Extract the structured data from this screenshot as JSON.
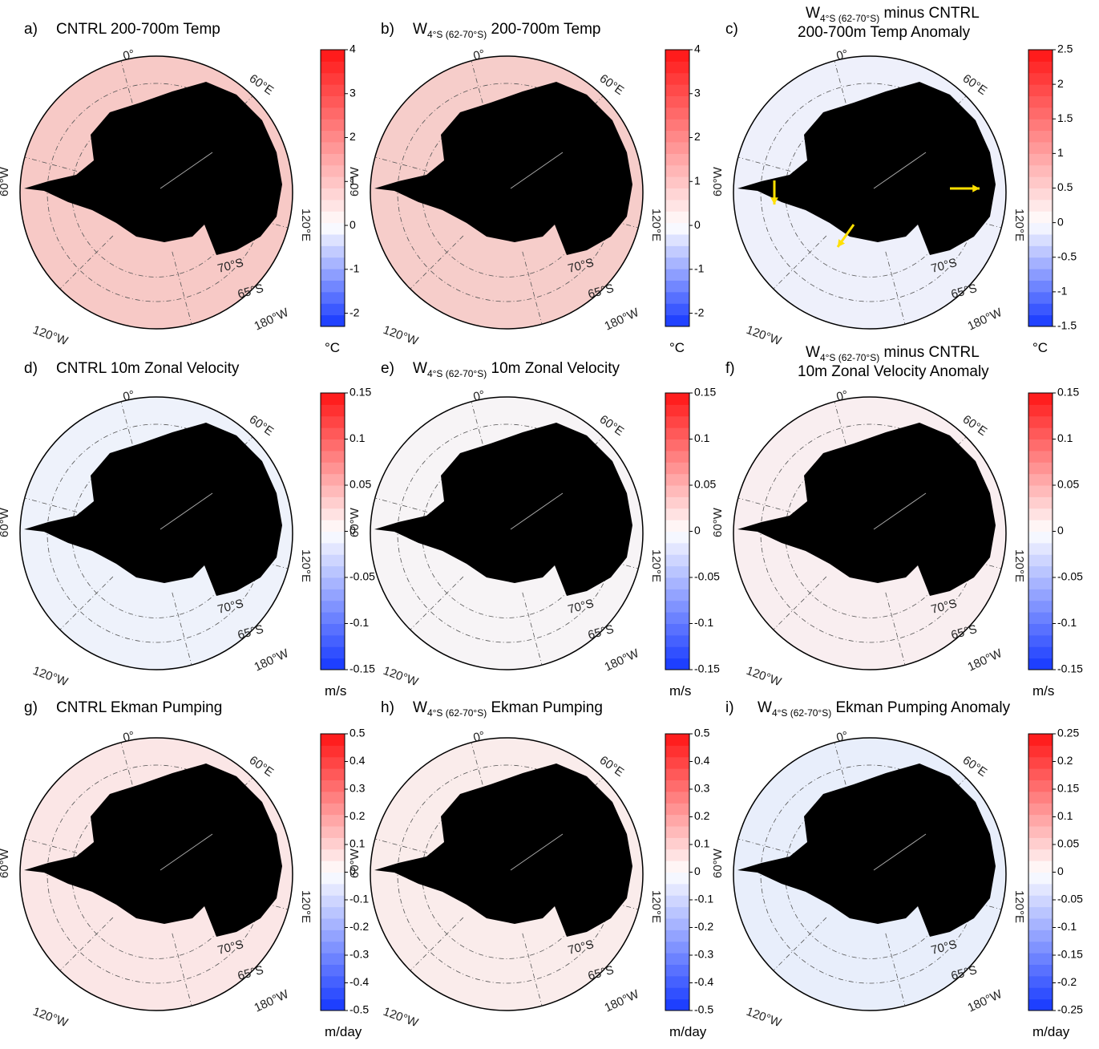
{
  "panels": [
    {
      "label": "a)",
      "title": "CNTRL 200-700m Temp",
      "clim": [
        -2.3,
        4
      ],
      "ticks": [
        -2,
        -1,
        0,
        1,
        2,
        3,
        4
      ],
      "unit": "°C"
    },
    {
      "label": "b)",
      "title_w": {
        "pre": "W",
        "sub": "4°S (62-70°S)",
        "post": " 200-700m  Temp"
      },
      "clim": [
        -2.3,
        4
      ],
      "ticks": [
        -2,
        -1,
        0,
        1,
        2,
        3,
        4
      ],
      "unit": "°C"
    },
    {
      "label": "c)",
      "title_w": {
        "pre": "W",
        "sub": "4°S (62-70°S)",
        "post": " minus CNTRL"
      },
      "title2": "200-700m Temp Anomaly",
      "clim": [
        -1.5,
        2.5
      ],
      "ticks": [
        -1.5,
        -1,
        -0.5,
        0,
        0.5,
        1,
        1.5,
        2,
        2.5
      ],
      "unit": "°C"
    },
    {
      "label": "d)",
      "title": "CNTRL 10m Zonal Velocity",
      "clim": [
        -0.15,
        0.15
      ],
      "ticks": [
        -0.15,
        -0.1,
        -0.05,
        0,
        0.05,
        0.1,
        0.15
      ],
      "unit": "m/s"
    },
    {
      "label": "e)",
      "title_w": {
        "pre": "W",
        "sub": "4°S (62-70°S)",
        "post": " 10m  Zonal Velocity"
      },
      "clim": [
        -0.15,
        0.15
      ],
      "ticks": [
        -0.15,
        -0.1,
        -0.05,
        0,
        0.05,
        0.1,
        0.15
      ],
      "unit": "m/s"
    },
    {
      "label": "f)",
      "title_w": {
        "pre": "W",
        "sub": "4°S (62-70°S)",
        "post": " minus CNTRL"
      },
      "title2": "10m Zonal Velocity Anomaly",
      "clim": [
        -0.15,
        0.15
      ],
      "ticks": [
        -0.15,
        -0.1,
        -0.05,
        0,
        0.05,
        0.1,
        0.15
      ],
      "unit": "m/s"
    },
    {
      "label": "g)",
      "title": "CNTRL Ekman Pumping",
      "clim": [
        -0.5,
        0.5
      ],
      "ticks": [
        -0.5,
        -0.4,
        -0.3,
        -0.2,
        -0.1,
        0,
        0.1,
        0.2,
        0.3,
        0.4,
        0.5
      ],
      "unit": "m/day"
    },
    {
      "label": "h)",
      "title_w": {
        "pre": "W",
        "sub": "4°S (62-70°S)",
        "post": " Ekman Pumping"
      },
      "clim": [
        -0.5,
        0.5
      ],
      "ticks": [
        -0.5,
        -0.4,
        -0.3,
        -0.2,
        -0.1,
        0,
        0.1,
        0.2,
        0.3,
        0.4,
        0.5
      ],
      "unit": "m/day"
    },
    {
      "label": "i)",
      "title_w": {
        "pre": "W",
        "sub": "4°S (62-70°S)",
        "post": " Ekman Pumping Anomaly"
      },
      "clim": [
        -0.25,
        0.25
      ],
      "ticks": [
        -0.25,
        -0.2,
        -0.15,
        -0.1,
        -0.05,
        0,
        0.05,
        0.1,
        0.15,
        0.2,
        0.25
      ],
      "unit": "m/day"
    }
  ],
  "map_labels": {
    "lon": [
      "0°",
      "60°E",
      "120°E",
      "60°W",
      "120°W",
      "180°W"
    ],
    "lat": [
      "70°S",
      "65°S"
    ]
  }
}
